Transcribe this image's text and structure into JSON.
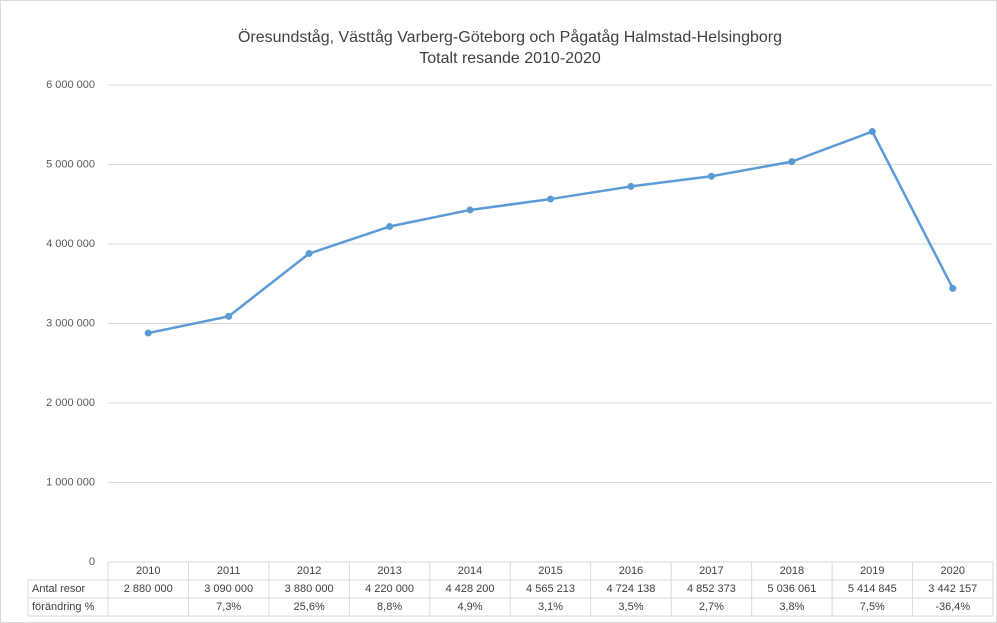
{
  "chart_data": {
    "type": "line",
    "title": "Öresundståg, Västtåg Varberg-Göteborg och Pågatåg Halmstad-Helsingborg",
    "subtitle": "Totalt resande 2010-2020",
    "categories": [
      "2010",
      "2011",
      "2012",
      "2013",
      "2014",
      "2015",
      "2016",
      "2017",
      "2018",
      "2019",
      "2020"
    ],
    "series": [
      {
        "name": "Antal resor",
        "color": "#5b9bd5",
        "values": [
          2880000,
          3090000,
          3880000,
          4220000,
          4428200,
          4565213,
          4724138,
          4852373,
          5036061,
          5414845,
          3442157
        ],
        "value_labels": [
          "2 880 000",
          "3 090 000",
          "3 880 000",
          "4 220 000",
          "4 428 200",
          "4 565 213",
          "4 724 138",
          "4 852 373",
          "5 036 061",
          "5 414 845",
          "3 442 157"
        ]
      }
    ],
    "change_row": {
      "name": "förändring %",
      "labels": [
        null,
        "7,3%",
        "25,6%",
        "8,8%",
        "4,9%",
        "3,1%",
        "3,5%",
        "2,7%",
        "3,8%",
        "7,5%",
        "-36,4%"
      ]
    },
    "ylim": [
      0,
      6000000
    ],
    "yticks": [
      {
        "value": 0,
        "label": "0"
      },
      {
        "value": 1000000,
        "label": "1 000 000"
      },
      {
        "value": 2000000,
        "label": "2 000 000"
      },
      {
        "value": 3000000,
        "label": "3 000 000"
      },
      {
        "value": 4000000,
        "label": "4 000 000"
      },
      {
        "value": 5000000,
        "label": "5 000 000"
      },
      {
        "value": 6000000,
        "label": "6 000 000"
      }
    ],
    "grid": true
  }
}
